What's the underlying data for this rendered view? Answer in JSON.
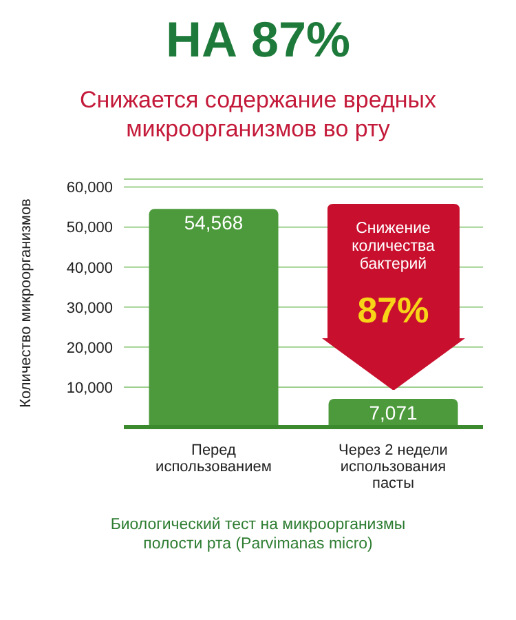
{
  "chart_data": {
    "type": "bar",
    "title": "НА 87%",
    "subtitle": "Снижается содержание вредных микроорганизмов во рту",
    "ylabel": "Количество микроорганизмов",
    "categories": [
      "Перед использованием",
      "Через 2 недели использования пасты"
    ],
    "values": [
      54568,
      7071
    ],
    "value_labels": [
      "54,568",
      "7,071"
    ],
    "color": "#4c9a3c",
    "ylim": [
      0,
      62000
    ],
    "yticks": [
      {
        "value": 10000,
        "label": "10,000"
      },
      {
        "value": 20000,
        "label": "20,000"
      },
      {
        "value": 30000,
        "label": "30,000"
      },
      {
        "value": 40000,
        "label": "40,000"
      },
      {
        "value": 50000,
        "label": "50,000"
      },
      {
        "value": 60000,
        "label": "60,000"
      }
    ],
    "grid": "y",
    "annotations": [
      "Снижение количества бактерий",
      "87%",
      "Биологический тест на микроорганизмы полости рта (Parvimanas micro)"
    ]
  }
}
